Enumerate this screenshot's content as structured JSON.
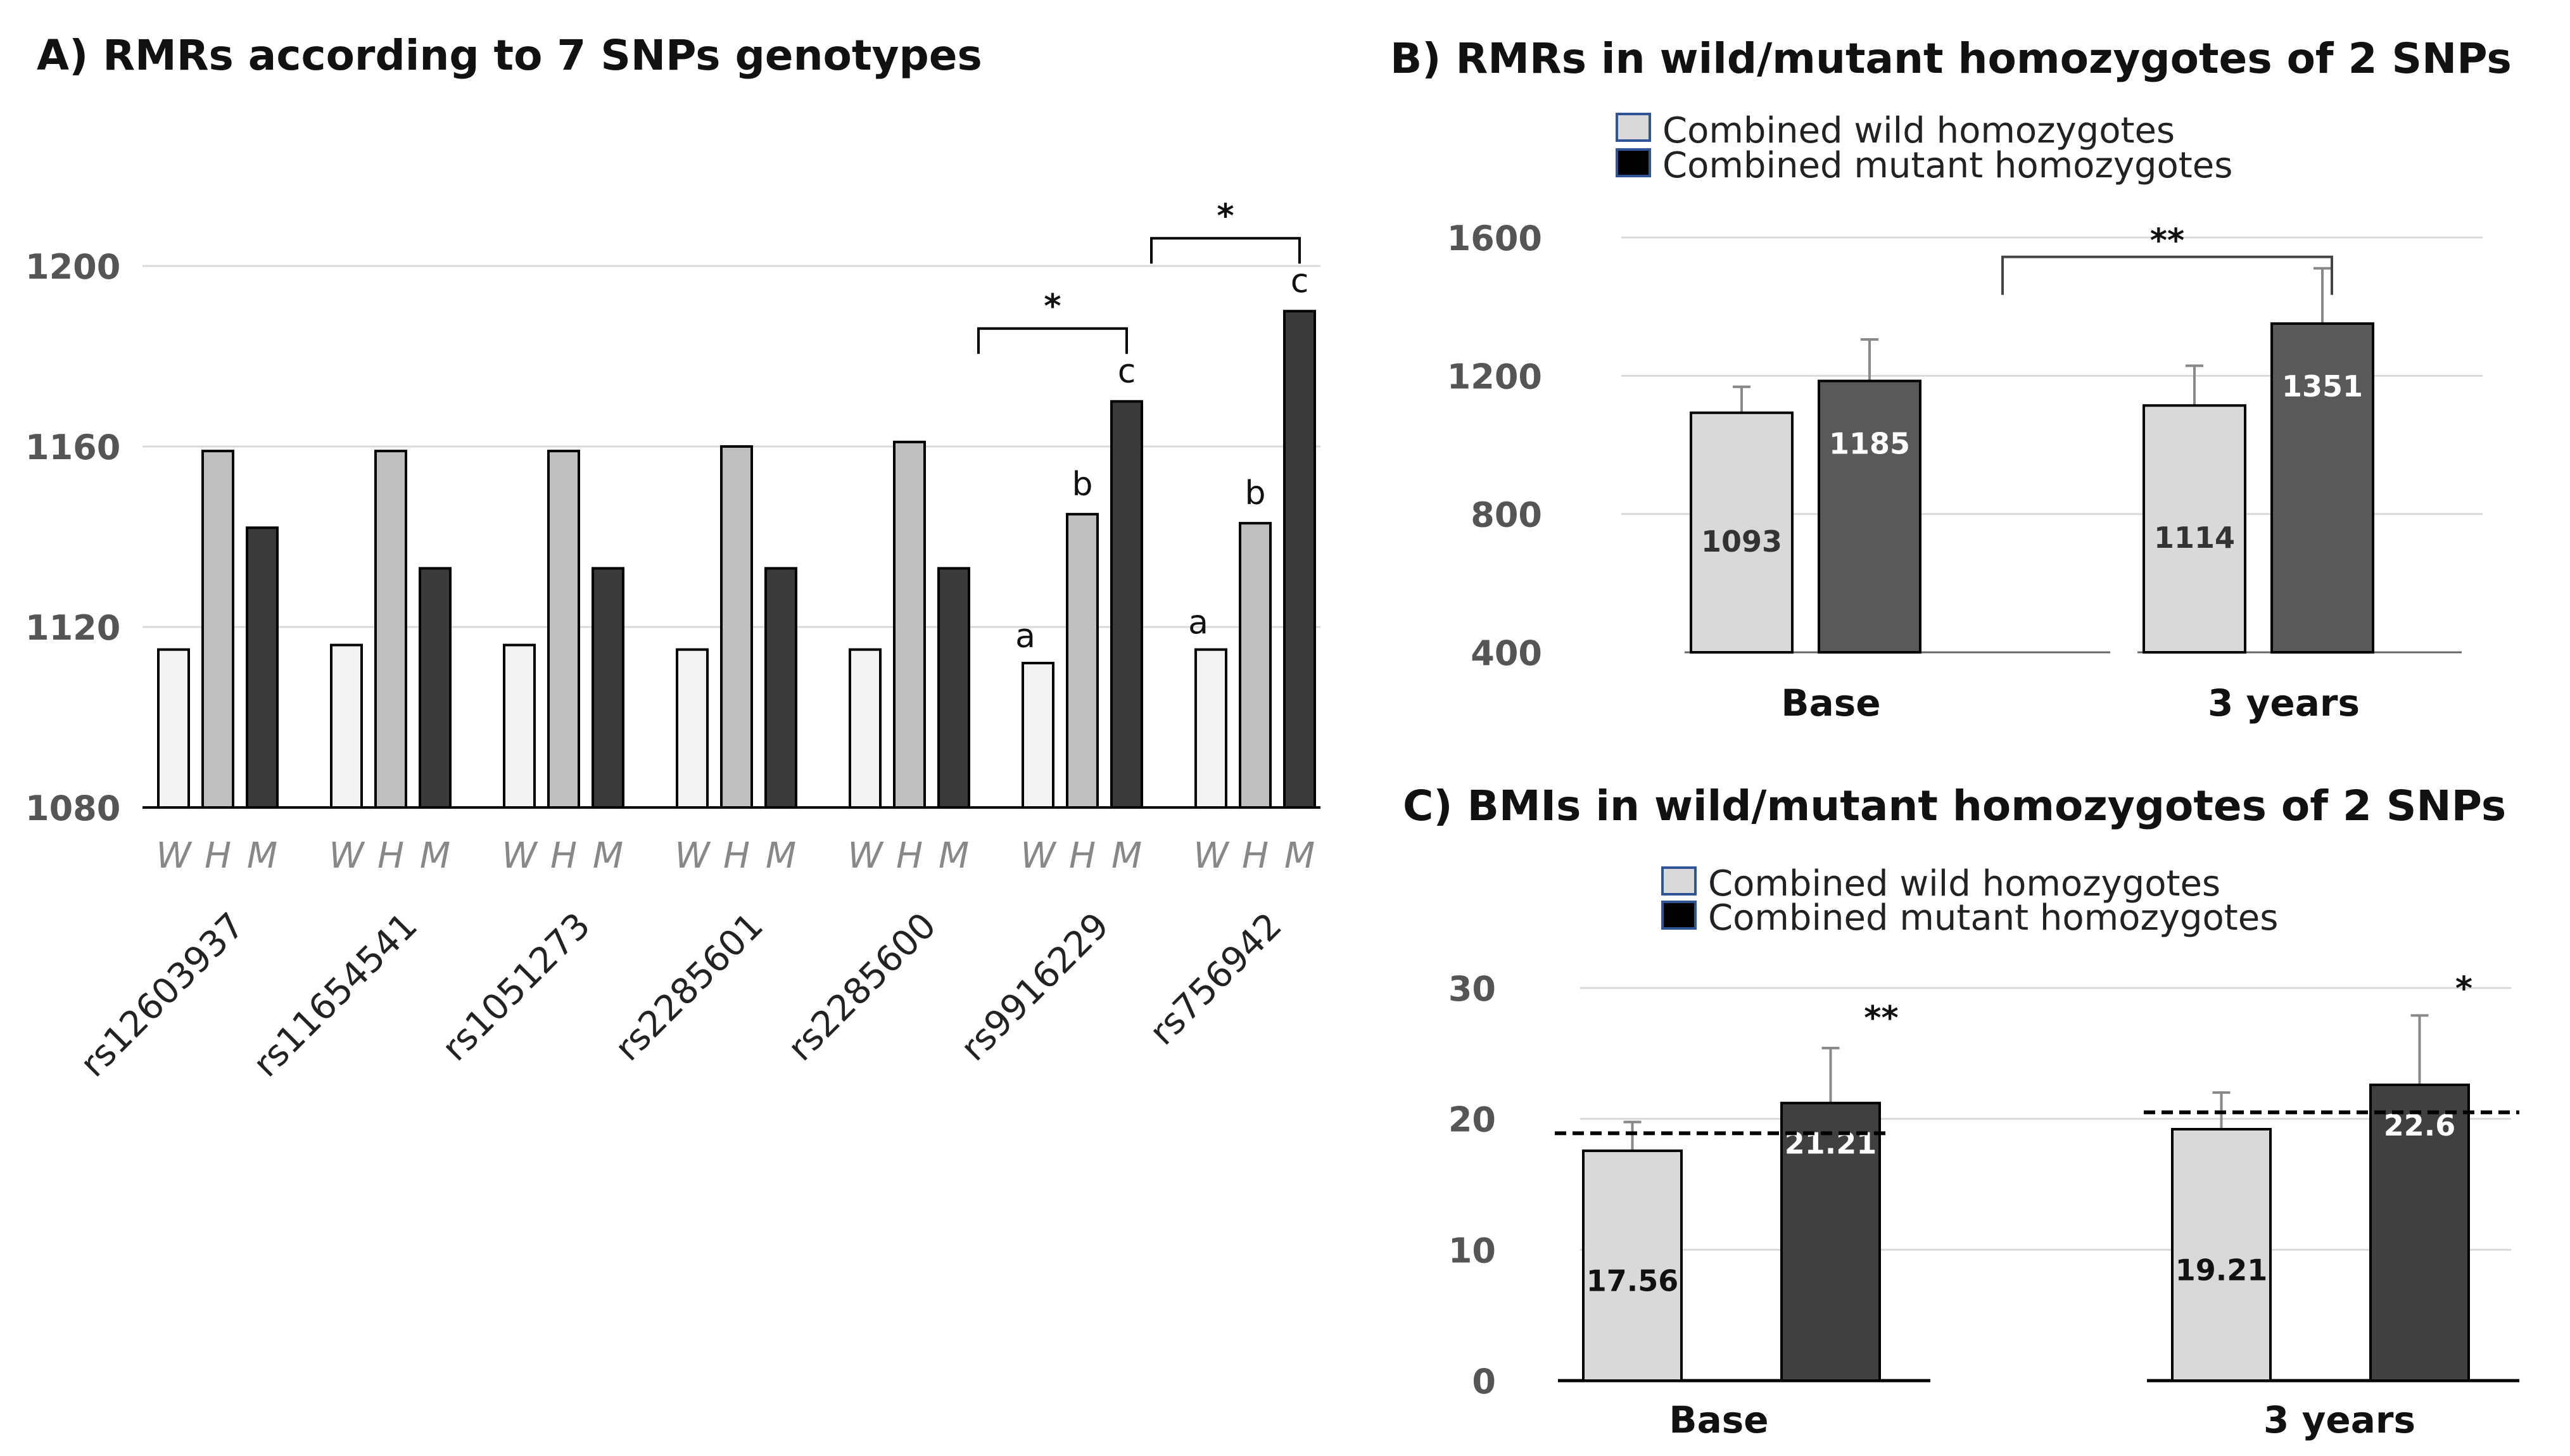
{
  "chart_data": [
    {
      "id": "A",
      "type": "bar",
      "title": "A) RMRs according to 7 SNPs genotypes",
      "categories": [
        "rs12603937",
        "rs11654541",
        "rs1051273",
        "rs2285601",
        "rs2285600",
        "rs9916229",
        "rs756942"
      ],
      "genotype_labels": [
        "W",
        "H",
        "M"
      ],
      "series": [
        {
          "name": "W",
          "color": "#f2f2f2",
          "values": [
            1115,
            1116,
            1116,
            1115,
            1115,
            1112,
            1115
          ]
        },
        {
          "name": "H",
          "color": "#bfbfbf",
          "values": [
            1159,
            1159,
            1159,
            1160,
            1161,
            1145,
            1143
          ]
        },
        {
          "name": "M",
          "color": "#3a3a3a",
          "values": [
            1142,
            1133,
            1133,
            1133,
            1133,
            1170,
            1190
          ]
        }
      ],
      "yticks": [
        1080,
        1120,
        1160,
        1200
      ],
      "ylim": [
        1080,
        1212
      ],
      "letters": [
        {
          "category": 5,
          "series": 0,
          "text": "a"
        },
        {
          "category": 5,
          "series": 1,
          "text": "b"
        },
        {
          "category": 5,
          "series": 2,
          "text": "c"
        },
        {
          "category": 6,
          "series": 0,
          "text": "a"
        },
        {
          "category": 6,
          "series": 1,
          "text": "b"
        },
        {
          "category": 6,
          "series": 2,
          "text": "c"
        }
      ],
      "brackets": [
        {
          "category": 5,
          "from": -1,
          "to": 2,
          "text": "*"
        },
        {
          "category": 6,
          "from": -1,
          "to": 2,
          "text": "*"
        }
      ]
    },
    {
      "id": "B",
      "type": "bar",
      "title": "B) RMRs in wild/mutant homozygotes of 2 SNPs",
      "categories": [
        "Base",
        "3 years"
      ],
      "series": [
        {
          "name": "Combined wild homozygotes",
          "color": "#d9d9d9",
          "values": [
            1093,
            1114
          ],
          "errors": [
            75,
            115
          ],
          "label_color": "#333333"
        },
        {
          "name": "Combined mutant homozygotes",
          "color": "#595959",
          "values": [
            1185,
            1351
          ],
          "errors": [
            120,
            160
          ],
          "label_color": "#ffffff"
        }
      ],
      "legend_swatch_colors": [
        "#d9d9d9",
        "#000000"
      ],
      "value_labels": [
        [
          "1093",
          "1114"
        ],
        [
          "1185",
          "1351"
        ]
      ],
      "yticks": [
        400,
        800,
        1200,
        1600
      ],
      "ylim": [
        400,
        1650
      ],
      "bracket": {
        "text": "**"
      }
    },
    {
      "id": "C",
      "type": "bar",
      "title": "C) BMIs in wild/mutant homozygotes of 2 SNPs",
      "categories": [
        "Base",
        "3 years"
      ],
      "series": [
        {
          "name": "Combined wild homozygotes",
          "color": "#d9d9d9",
          "values": [
            17.56,
            19.21
          ],
          "errors": [
            2.2,
            2.8
          ],
          "label_color": "#111111"
        },
        {
          "name": "Combined mutant homozygotes",
          "color": "#404040",
          "values": [
            21.21,
            22.6
          ],
          "errors": [
            4.2,
            5.3
          ],
          "label_color": "#ffffff"
        }
      ],
      "legend_swatch_colors": [
        "#d9d9d9",
        "#000000"
      ],
      "value_labels": [
        [
          "17.56",
          "19.21"
        ],
        [
          "21.21",
          "22.6"
        ]
      ],
      "reference_lines": [
        18.9,
        20.5
      ],
      "stars": [
        "**",
        "*"
      ],
      "yticks": [
        0,
        10,
        20,
        30
      ],
      "ylim": [
        0,
        31
      ]
    }
  ]
}
